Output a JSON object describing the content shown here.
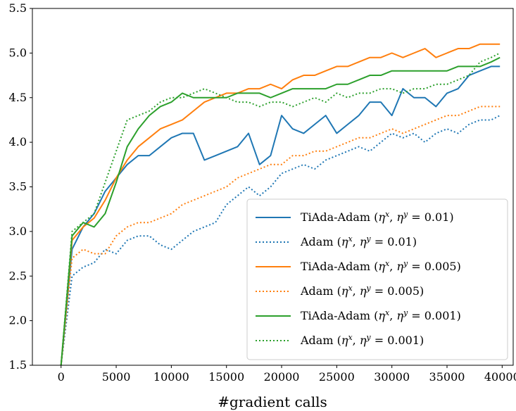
{
  "chart_data": {
    "type": "line",
    "title": "",
    "xlabel": "#gradient calls",
    "ylabel": "",
    "xlim": [
      -2600,
      41000
    ],
    "ylim": [
      1.5,
      5.5
    ],
    "xticks": [
      0,
      5000,
      10000,
      15000,
      20000,
      25000,
      30000,
      35000,
      40000
    ],
    "yticks": [
      1.5,
      2.0,
      2.5,
      3.0,
      3.5,
      4.0,
      4.5,
      5.0,
      5.5
    ],
    "xtick_labels": [
      "0",
      "5000",
      "10000",
      "15000",
      "20000",
      "25000",
      "30000",
      "35000",
      "40000"
    ],
    "ytick_labels": [
      "1.5",
      "2.0",
      "2.5",
      "3.0",
      "3.5",
      "4.0",
      "4.5",
      "5.0",
      "5.5"
    ],
    "grid": false,
    "legend_position": "lower-right",
    "series": [
      {
        "name": "TiAda-Adam (ηx, ηy = 0.01)",
        "legend_prefix": "TiAda-Adam (",
        "legend_math": "η^x, η^y = 0.01",
        "legend_suffix": ")",
        "color": "#1f77b4",
        "style": "solid",
        "x": [
          0,
          1000,
          2000,
          3000,
          4000,
          5000,
          6000,
          7000,
          8000,
          9000,
          10000,
          11000,
          12000,
          13000,
          14000,
          15000,
          16000,
          17000,
          18000,
          19000,
          20000,
          21000,
          22000,
          23000,
          24000,
          25000,
          26000,
          27000,
          28000,
          29000,
          30000,
          31000,
          32000,
          33000,
          34000,
          35000,
          36000,
          37000,
          38000,
          39000,
          39800
        ],
        "y": [
          1.5,
          2.8,
          3.05,
          3.2,
          3.45,
          3.6,
          3.75,
          3.85,
          3.85,
          3.95,
          4.05,
          4.1,
          4.1,
          3.8,
          3.85,
          3.9,
          3.95,
          4.1,
          3.75,
          3.85,
          4.3,
          4.15,
          4.1,
          4.2,
          4.3,
          4.1,
          4.2,
          4.3,
          4.45,
          4.45,
          4.3,
          4.6,
          4.5,
          4.5,
          4.4,
          4.55,
          4.6,
          4.75,
          4.8,
          4.85,
          4.85
        ]
      },
      {
        "name": "Adam (ηx, ηy = 0.01)",
        "legend_prefix": "Adam (",
        "legend_math": "η^x, η^y = 0.01",
        "legend_suffix": ")",
        "color": "#1f77b4",
        "style": "dotted",
        "x": [
          0,
          1000,
          2000,
          3000,
          4000,
          5000,
          6000,
          7000,
          8000,
          9000,
          10000,
          11000,
          12000,
          13000,
          14000,
          15000,
          16000,
          17000,
          18000,
          19000,
          20000,
          21000,
          22000,
          23000,
          24000,
          25000,
          26000,
          27000,
          28000,
          29000,
          30000,
          31000,
          32000,
          33000,
          34000,
          35000,
          36000,
          37000,
          38000,
          39000,
          39800
        ],
        "y": [
          1.5,
          2.5,
          2.6,
          2.65,
          2.8,
          2.75,
          2.9,
          2.95,
          2.95,
          2.85,
          2.8,
          2.9,
          3.0,
          3.05,
          3.1,
          3.3,
          3.4,
          3.5,
          3.4,
          3.5,
          3.65,
          3.7,
          3.75,
          3.7,
          3.8,
          3.85,
          3.9,
          3.95,
          3.9,
          4.0,
          4.1,
          4.05,
          4.1,
          4.0,
          4.1,
          4.15,
          4.1,
          4.2,
          4.25,
          4.25,
          4.3
        ]
      },
      {
        "name": "TiAda-Adam (ηx, ηy = 0.005)",
        "legend_prefix": "TiAda-Adam (",
        "legend_math": "η^x, η^y = 0.005",
        "legend_suffix": ")",
        "color": "#ff7f0e",
        "style": "solid",
        "x": [
          0,
          1000,
          2000,
          3000,
          4000,
          5000,
          6000,
          7000,
          8000,
          9000,
          10000,
          11000,
          12000,
          13000,
          14000,
          15000,
          16000,
          17000,
          18000,
          19000,
          20000,
          21000,
          22000,
          23000,
          24000,
          25000,
          26000,
          27000,
          28000,
          29000,
          30000,
          31000,
          32000,
          33000,
          34000,
          35000,
          36000,
          37000,
          38000,
          39000,
          39800
        ],
        "y": [
          1.5,
          2.9,
          3.05,
          3.15,
          3.35,
          3.6,
          3.8,
          3.95,
          4.05,
          4.15,
          4.2,
          4.25,
          4.35,
          4.45,
          4.5,
          4.55,
          4.55,
          4.6,
          4.6,
          4.65,
          4.6,
          4.7,
          4.75,
          4.75,
          4.8,
          4.85,
          4.85,
          4.9,
          4.95,
          4.95,
          5.0,
          4.95,
          5.0,
          5.05,
          4.95,
          5.0,
          5.05,
          5.05,
          5.1,
          5.1,
          5.1
        ]
      },
      {
        "name": "Adam (ηx, ηy = 0.005)",
        "legend_prefix": "Adam (",
        "legend_math": "η^x, η^y = 0.005",
        "legend_suffix": ")",
        "color": "#ff7f0e",
        "style": "dotted",
        "x": [
          0,
          1000,
          2000,
          3000,
          4000,
          5000,
          6000,
          7000,
          8000,
          9000,
          10000,
          11000,
          12000,
          13000,
          14000,
          15000,
          16000,
          17000,
          18000,
          19000,
          20000,
          21000,
          22000,
          23000,
          24000,
          25000,
          26000,
          27000,
          28000,
          29000,
          30000,
          31000,
          32000,
          33000,
          34000,
          35000,
          36000,
          37000,
          38000,
          39000,
          39800
        ],
        "y": [
          1.5,
          2.7,
          2.8,
          2.75,
          2.75,
          2.95,
          3.05,
          3.1,
          3.1,
          3.15,
          3.2,
          3.3,
          3.35,
          3.4,
          3.45,
          3.5,
          3.6,
          3.65,
          3.7,
          3.75,
          3.75,
          3.85,
          3.85,
          3.9,
          3.9,
          3.95,
          4.0,
          4.05,
          4.05,
          4.1,
          4.15,
          4.1,
          4.15,
          4.2,
          4.25,
          4.3,
          4.3,
          4.35,
          4.4,
          4.4,
          4.4
        ]
      },
      {
        "name": "TiAda-Adam (ηx, ηy = 0.001)",
        "legend_prefix": "TiAda-Adam (",
        "legend_math": "η^x, η^y = 0.001",
        "legend_suffix": ")",
        "color": "#2ca02c",
        "style": "solid",
        "x": [
          0,
          1000,
          2000,
          3000,
          4000,
          5000,
          6000,
          7000,
          8000,
          9000,
          10000,
          11000,
          12000,
          13000,
          14000,
          15000,
          16000,
          17000,
          18000,
          19000,
          20000,
          21000,
          22000,
          23000,
          24000,
          25000,
          26000,
          27000,
          28000,
          29000,
          30000,
          31000,
          32000,
          33000,
          34000,
          35000,
          36000,
          37000,
          38000,
          39000,
          39800
        ],
        "y": [
          1.5,
          2.95,
          3.1,
          3.05,
          3.2,
          3.55,
          3.95,
          4.15,
          4.3,
          4.4,
          4.45,
          4.55,
          4.5,
          4.5,
          4.5,
          4.5,
          4.55,
          4.55,
          4.55,
          4.5,
          4.55,
          4.6,
          4.6,
          4.6,
          4.6,
          4.65,
          4.65,
          4.7,
          4.75,
          4.75,
          4.8,
          4.8,
          4.8,
          4.8,
          4.8,
          4.8,
          4.85,
          4.85,
          4.85,
          4.9,
          4.95
        ]
      },
      {
        "name": "Adam (ηx, ηy = 0.001)",
        "legend_prefix": "Adam (",
        "legend_math": "η^x, η^y = 0.001",
        "legend_suffix": ")",
        "color": "#2ca02c",
        "style": "dotted",
        "x": [
          0,
          1000,
          2000,
          3000,
          4000,
          5000,
          6000,
          7000,
          8000,
          9000,
          10000,
          11000,
          12000,
          13000,
          14000,
          15000,
          16000,
          17000,
          18000,
          19000,
          20000,
          21000,
          22000,
          23000,
          24000,
          25000,
          26000,
          27000,
          28000,
          29000,
          30000,
          31000,
          32000,
          33000,
          34000,
          35000,
          36000,
          37000,
          38000,
          39000,
          39800
        ],
        "y": [
          1.5,
          3.0,
          3.1,
          3.2,
          3.55,
          3.9,
          4.25,
          4.3,
          4.35,
          4.45,
          4.5,
          4.5,
          4.55,
          4.6,
          4.55,
          4.5,
          4.45,
          4.45,
          4.4,
          4.45,
          4.45,
          4.4,
          4.45,
          4.5,
          4.45,
          4.55,
          4.5,
          4.55,
          4.55,
          4.6,
          4.6,
          4.55,
          4.6,
          4.6,
          4.65,
          4.65,
          4.7,
          4.75,
          4.9,
          4.95,
          5.0
        ]
      }
    ]
  }
}
